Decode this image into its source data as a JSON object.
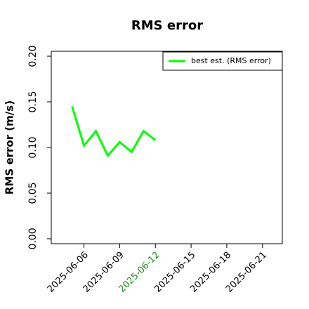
{
  "chart_data": {
    "type": "line",
    "title": "RMS error",
    "ylabel": "RMS error (m/s)",
    "x": [
      "2025-06-05",
      "2025-06-06",
      "2025-06-07",
      "2025-06-08",
      "2025-06-09",
      "2025-06-10",
      "2025-06-11",
      "2025-06-12"
    ],
    "series": [
      {
        "name": "best est. (RMS error)",
        "color": "#00ff00",
        "values": [
          0.145,
          0.102,
          0.118,
          0.091,
          0.106,
          0.095,
          0.118,
          0.108
        ]
      }
    ],
    "xlim": [
      "2025-06-03T06:00:00Z",
      "2025-06-22T16:00:00Z"
    ],
    "xticks": [
      "2025-06-06",
      "2025-06-09",
      "2025-06-12",
      "2025-06-15",
      "2025-06-18",
      "2025-06-21"
    ],
    "xtick_colors": [
      "#000000",
      "#000000",
      "#228b22",
      "#000000",
      "#000000",
      "#000000"
    ],
    "ylim": [
      -0.0054,
      0.2054
    ],
    "yticks": [
      {
        "value": 0,
        "label": "0.00"
      },
      {
        "value": 0.05,
        "label": "0.05"
      },
      {
        "value": 0.1,
        "label": "0.10"
      },
      {
        "value": 0.15,
        "label": "0.15"
      },
      {
        "value": 0.2,
        "label": "0.20"
      }
    ],
    "legend": "upper right"
  }
}
